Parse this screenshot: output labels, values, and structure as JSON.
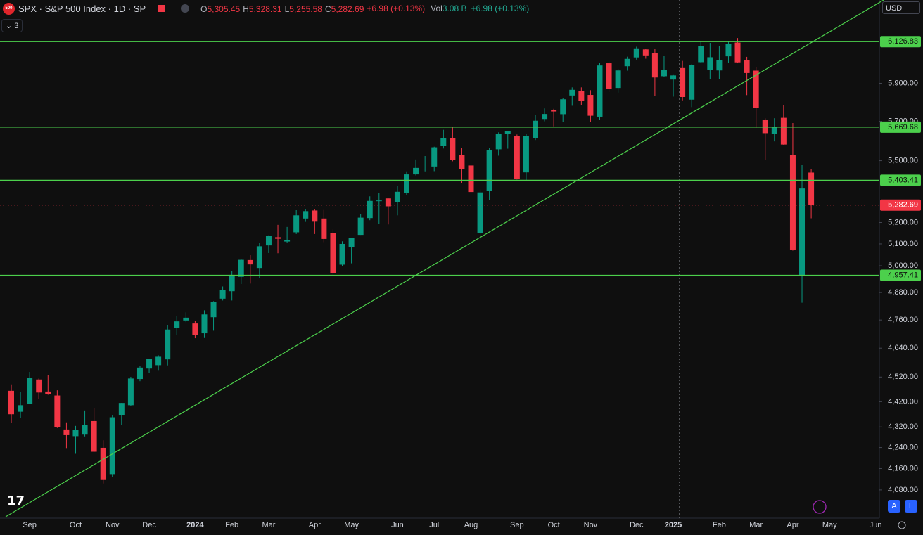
{
  "header": {
    "logo": "500",
    "symbol": "SPX · S&P 500 Index · 1D · SP",
    "ohlc": [
      {
        "key": "O",
        "value": "5,305.45"
      },
      {
        "key": "H",
        "value": "5,328.31"
      },
      {
        "key": "L",
        "value": "5,255.58"
      },
      {
        "key": "C",
        "value": "5,282.69"
      }
    ],
    "change": "+6.98 (+0.13%)",
    "vol_label": "Vol",
    "volume": "3.08 B",
    "vol_change": "+6.98 (+0.13%)",
    "indicators": "3",
    "currency": "USD",
    "buttons": [
      "A",
      "L"
    ]
  },
  "chart_data": {
    "type": "candlestick",
    "log": true,
    "up_color": "#089981",
    "down_color": "#f23645",
    "level_color": "#4cd04c",
    "last_color": "#f23645",
    "categories": [
      null,
      null,
      "Sep",
      null,
      null,
      null,
      null,
      "Oct",
      null,
      null,
      null,
      "Nov",
      null,
      null,
      null,
      "Dec",
      null,
      null,
      null,
      null,
      "2024",
      null,
      null,
      null,
      "Feb",
      null,
      null,
      null,
      "Mar",
      null,
      null,
      null,
      null,
      "Apr",
      null,
      null,
      null,
      "May",
      null,
      null,
      null,
      null,
      "Jun",
      null,
      null,
      null,
      "Jul",
      null,
      null,
      null,
      "Aug",
      null,
      null,
      null,
      null,
      "Sep",
      null,
      null,
      null,
      "Oct",
      null,
      null,
      null,
      "Nov",
      null,
      null,
      null,
      null,
      "Dec",
      null,
      null,
      null,
      "2025",
      null,
      null,
      null,
      null,
      "Feb",
      null,
      null,
      null,
      "Mar",
      null,
      null,
      null,
      "Apr",
      null,
      null,
      null,
      "May",
      null,
      null,
      null,
      null,
      "Jun",
      null
    ],
    "open": [
      4464,
      4380,
      4411,
      4510,
      4461,
      4445,
      4310,
      4284,
      4290,
      4343,
      4239,
      4139,
      4365,
      4406,
      4512,
      4555,
      4569,
      4593,
      4725,
      4758,
      4745,
      4703,
      4772,
      4853,
      4886,
      4950,
      5026,
      4990,
      5093,
      5131,
      5111,
      5154,
      5219,
      5257,
      5219,
      5149,
      5005,
      5085,
      5142,
      5221,
      5305,
      5315,
      5297,
      5341,
      5432,
      5459,
      5471,
      5573,
      5614,
      5528,
      5476,
      5151,
      5353,
      5557,
      5635,
      5624,
      5442,
      5615,
      5712,
      5757,
      5737,
      5835,
      5857,
      5838,
      5724,
      6008,
      5875,
      5992,
      6040,
      6084,
      6064,
      5938,
      5920,
      5982,
      5813,
      6014,
      5970,
      5969,
      6046,
      6122,
      6027,
      5968,
      5706,
      5635,
      5718,
      5527,
      4953,
      5441,
      null,
      null,
      null,
      null,
      null,
      null,
      null,
      null
    ],
    "high": [
      4490,
      4458,
      4541,
      4514,
      4527,
      4466,
      4338,
      4324,
      4385,
      4393,
      4268,
      4365,
      4415,
      4521,
      4567,
      4595,
      4610,
      4738,
      4778,
      4793,
      4755,
      4802,
      4842,
      4907,
      4975,
      5030,
      5048,
      5105,
      5140,
      5189,
      5179,
      5261,
      5265,
      5265,
      5263,
      5168,
      5112,
      5123,
      5239,
      5325,
      5342,
      5315,
      5376,
      5447,
      5506,
      5523,
      5570,
      5656,
      5670,
      5565,
      5566,
      5358,
      5564,
      5643,
      5651,
      5632,
      5636,
      5733,
      5767,
      5765,
      5822,
      5878,
      5878,
      5863,
      6012,
      6018,
      5977,
      6044,
      6099,
      6086,
      6085,
      6049,
      5948,
      6021,
      6003,
      6128,
      6120,
      6101,
      6128,
      6147,
      6043,
      5987,
      5715,
      5716,
      5786,
      5691,
      5481,
      5459,
      null,
      null,
      null,
      null,
      null,
      null,
      null,
      null
    ],
    "low": [
      4335,
      4356,
      4411,
      4430,
      4448,
      4316,
      4238,
      4216,
      4283,
      4223,
      4104,
      4127,
      4329,
      4402,
      4503,
      4537,
      4546,
      4568,
      4697,
      4751,
      4682,
      4683,
      4714,
      4845,
      4845,
      4918,
      4920,
      4946,
      5058,
      5057,
      5104,
      5146,
      5203,
      5146,
      5108,
      4953,
      4998,
      5011,
      5142,
      5211,
      5192,
      5191,
      5234,
      5330,
      5427,
      5447,
      5448,
      5561,
      5497,
      5390,
      5306,
      5120,
      5308,
      5525,
      5560,
      5407,
      5403,
      5604,
      5700,
      5674,
      5695,
      5781,
      5783,
      5696,
      5707,
      5853,
      5850,
      5968,
      6028,
      6033,
      5833,
      5933,
      5829,
      5809,
      5774,
      6008,
      5923,
      5923,
      6012,
      6008,
      5837,
      5666,
      5504,
      5597,
      5580,
      5069,
      4835,
      5220,
      null,
      null,
      null,
      null,
      null,
      null,
      null,
      null
    ],
    "close": [
      4370,
      4406,
      4516,
      4457,
      4450,
      4320,
      4288,
      4308,
      4328,
      4224,
      4117,
      4358,
      4415,
      4514,
      4559,
      4595,
      4604,
      4719,
      4754,
      4770,
      4697,
      4784,
      4840,
      4891,
      4959,
      5027,
      5006,
      5089,
      5137,
      5124,
      5117,
      5234,
      5254,
      5204,
      5123,
      4967,
      5100,
      5128,
      5223,
      5303,
      5305,
      5277,
      5347,
      5432,
      5464,
      5460,
      5567,
      5615,
      5505,
      5459,
      5346,
      5344,
      5554,
      5634,
      5648,
      5408,
      5626,
      5703,
      5738,
      5751,
      5815,
      5865,
      5808,
      5729,
      5996,
      5870,
      5969,
      6032,
      6090,
      6051,
      5931,
      5971,
      5942,
      5827,
      5997,
      6101,
      6041,
      6026,
      6115,
      6013,
      5955,
      5770,
      5639,
      5668,
      5581,
      5074,
      5363,
      5282.69,
      null,
      null,
      null,
      null,
      null,
      null,
      null,
      null
    ],
    "ylim": [
      3977,
      6363
    ],
    "yticks": [
      {
        "value": 4080,
        "label": "4,080.00"
      },
      {
        "value": 4160,
        "label": "4,160.00"
      },
      {
        "value": 4240,
        "label": "4,240.00"
      },
      {
        "value": 4320,
        "label": "4,320.00"
      },
      {
        "value": 4420,
        "label": "4,420.00"
      },
      {
        "value": 4520,
        "label": "4,520.00"
      },
      {
        "value": 4640,
        "label": "4,640.00"
      },
      {
        "value": 4760,
        "label": "4,760.00"
      },
      {
        "value": 4880,
        "label": "4,880.00"
      },
      {
        "value": 5000,
        "label": "5,000.00"
      },
      {
        "value": 5100,
        "label": "5,100.00"
      },
      {
        "value": 5200,
        "label": "5,200.00"
      },
      {
        "value": 5500,
        "label": "5,500.00"
      },
      {
        "value": 5700,
        "label": "5,700.00"
      },
      {
        "value": 5900,
        "label": "5,900.00"
      }
    ],
    "hlines": [
      {
        "value": 6126.83,
        "label": "6,126.83"
      },
      {
        "value": 5669.68,
        "label": "5,669.68"
      },
      {
        "value": 5403.41,
        "label": "5,403.41"
      },
      {
        "value": 4957.41,
        "label": "4,957.41"
      }
    ],
    "last_price": {
      "value": 5282.69,
      "label": "5,282.69"
    }
  }
}
